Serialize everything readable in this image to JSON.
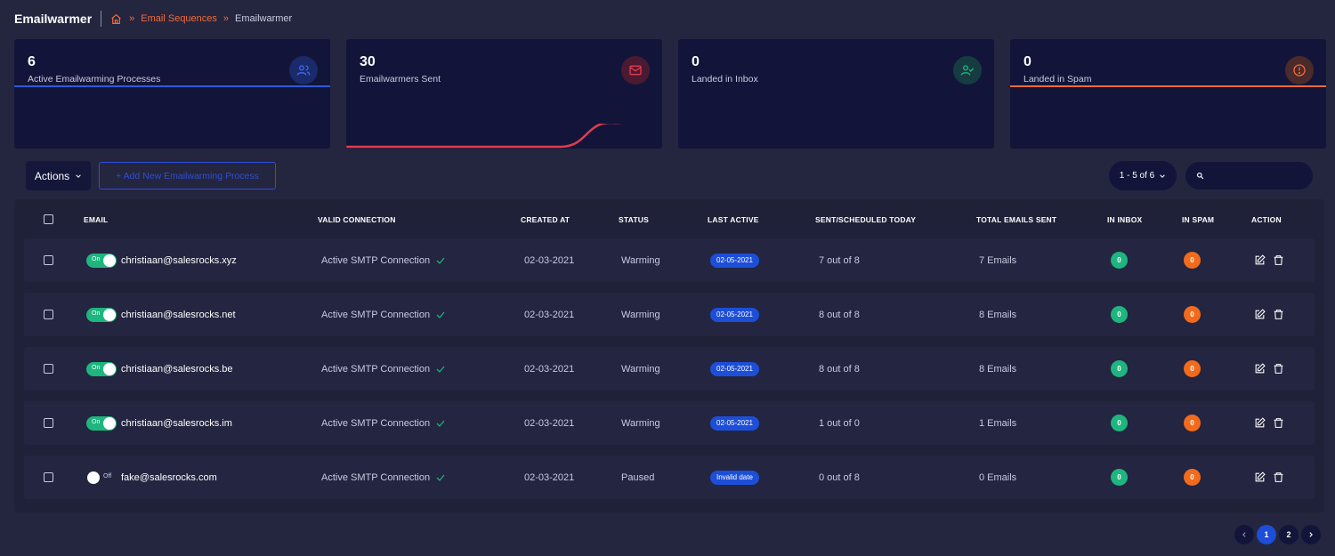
{
  "header": {
    "title": "Emailwarmer",
    "breadcrumb": [
      "Email Sequences",
      "Emailwarmer"
    ],
    "breadcrumb_sep": "»"
  },
  "stats": [
    {
      "value": "6",
      "label": "Active Emailwarming Processes",
      "icon": "users-icon",
      "accent": "#2d5bd7"
    },
    {
      "value": "30",
      "label": "Emailwarmers Sent",
      "icon": "mail-icon",
      "accent": "#e23b4e"
    },
    {
      "value": "0",
      "label": "Landed in Inbox",
      "icon": "user-check-icon",
      "accent": "#1eb57e"
    },
    {
      "value": "0",
      "label": "Landed in Spam",
      "icon": "alert-circle-icon",
      "accent": "#f06b3b"
    }
  ],
  "toolbar": {
    "actions_label": "Actions",
    "add_label": "+ Add New Emailwarming Process",
    "page_range": "1 - 5 of 6",
    "search_placeholder": ""
  },
  "table": {
    "columns": [
      "EMAIL",
      "VALID CONNECTION",
      "CREATED AT",
      "STATUS",
      "LAST ACTIVE",
      "SENT/SCHEDULED TODAY",
      "TOTAL EMAILS SENT",
      "IN INBOX",
      "IN SPAM",
      "ACTION"
    ],
    "rows": [
      {
        "toggle": "On",
        "email": "christiaan@salesrocks.xyz",
        "connection": "Active SMTP Connection",
        "created": "02-03-2021",
        "status": "Warming",
        "last_active": "02-05-2021",
        "today": "7 out of 8",
        "total": "7 Emails",
        "inbox": "0",
        "spam": "0"
      },
      {
        "toggle": "On",
        "email": "christiaan@salesrocks.net",
        "connection": "Active SMTP Connection",
        "created": "02-03-2021",
        "status": "Warming",
        "last_active": "02-05-2021",
        "today": "8 out of 8",
        "total": "8 Emails",
        "inbox": "0",
        "spam": "0"
      },
      {
        "toggle": "On",
        "email": "christiaan@salesrocks.be",
        "connection": "Active SMTP Connection",
        "created": "02-03-2021",
        "status": "Warming",
        "last_active": "02-05-2021",
        "today": "8 out of 8",
        "total": "8 Emails",
        "inbox": "0",
        "spam": "0"
      },
      {
        "toggle": "On",
        "email": "christiaan@salesrocks.im",
        "connection": "Active SMTP Connection",
        "created": "02-03-2021",
        "status": "Warming",
        "last_active": "02-05-2021",
        "today": "1 out of 0",
        "total": "1 Emails",
        "inbox": "0",
        "spam": "0"
      },
      {
        "toggle": "Off",
        "email": "fake@salesrocks.com",
        "connection": "Active SMTP Connection",
        "created": "02-03-2021",
        "status": "Paused",
        "last_active": "Invalid date",
        "today": "0 out of 8",
        "total": "0 Emails",
        "inbox": "0",
        "spam": "0"
      }
    ]
  },
  "pagination": {
    "pages": [
      "1",
      "2"
    ],
    "current": "1"
  }
}
